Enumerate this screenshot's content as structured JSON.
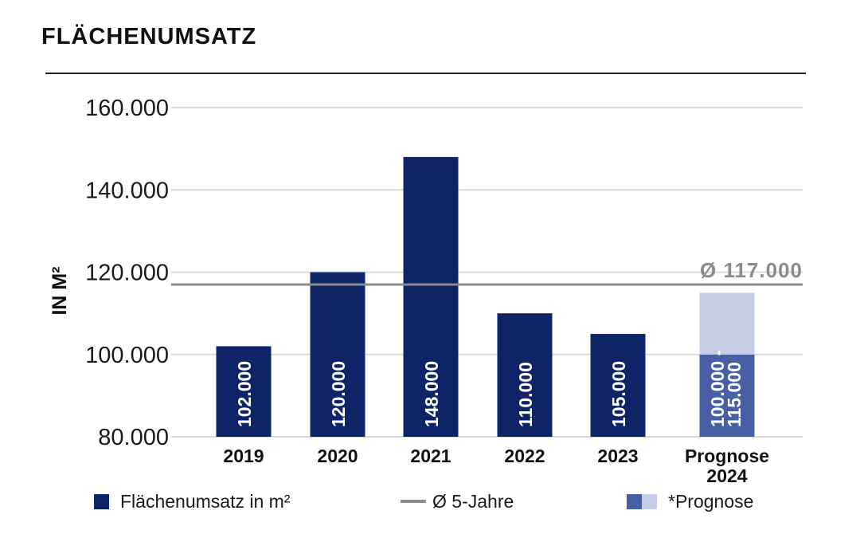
{
  "title": "FLÄCHENUMSATZ",
  "colors": {
    "bar": "#0d2466",
    "forecast_base": "#4760a4",
    "forecast_range": "#c5cce6",
    "average": "#8c8c8c",
    "grid": "#d9d9d9",
    "rule": "#222222",
    "text": "#1a1a1a"
  },
  "chart_data": {
    "type": "bar",
    "ylabel": "IN M²",
    "ylim": [
      80000,
      160000
    ],
    "y_ticks": [
      "80.000",
      "100.000",
      "120.000",
      "140.000",
      "160.000"
    ],
    "y_tick_values": [
      80000,
      100000,
      120000,
      140000,
      160000
    ],
    "grid": true,
    "categories": [
      "2019",
      "2020",
      "2021",
      "2022",
      "2023",
      "Prognose 2024"
    ],
    "category_lines": [
      [
        "2019"
      ],
      [
        "2020"
      ],
      [
        "2021"
      ],
      [
        "2022"
      ],
      [
        "2023"
      ],
      [
        "Prognose",
        "2024"
      ]
    ],
    "series": [
      {
        "name": "Flächenumsatz in m²",
        "values": [
          102000,
          120000,
          148000,
          110000,
          105000,
          null
        ],
        "labels": [
          "102.000",
          "120.000",
          "148.000",
          "110.000",
          "105.000",
          null
        ]
      }
    ],
    "forecast": {
      "category": "Prognose 2024",
      "low": 100000,
      "high": 115000,
      "label_lines": [
        "100.000 -",
        "115.000"
      ]
    },
    "average": {
      "value": 117000,
      "label": "Ø 117.000"
    },
    "legend": {
      "placement": "bottom",
      "items": [
        {
          "key": "bar",
          "label": "Flächenumsatz in m²"
        },
        {
          "key": "average",
          "label": "Ø 5-Jahre"
        },
        {
          "key": "forecast",
          "label": "*Prognose"
        }
      ]
    }
  }
}
